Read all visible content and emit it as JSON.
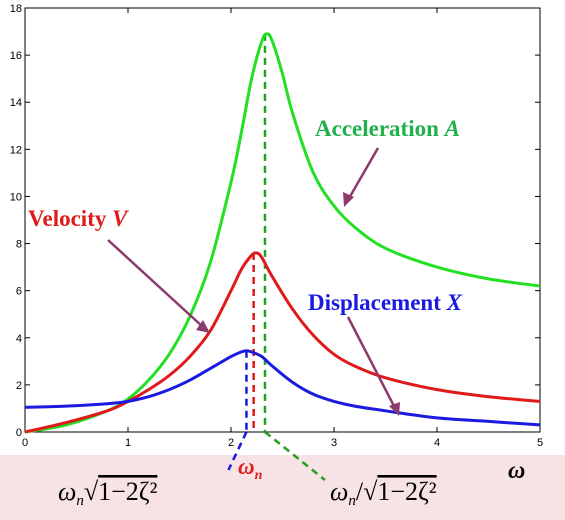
{
  "chart_data": {
    "type": "line",
    "xlabel": "ω",
    "ylabel": "",
    "xlim": [
      0,
      5
    ],
    "ylim": [
      0,
      18
    ],
    "x_ticks": [
      0,
      1,
      2,
      3,
      4,
      5
    ],
    "y_ticks": [
      0,
      2,
      4,
      6,
      8,
      10,
      12,
      14,
      16,
      18
    ],
    "grid": false,
    "series": [
      {
        "name": "Acceleration A",
        "color": "#22e022",
        "x": [
          0,
          0.4,
          0.8,
          1.0,
          1.2,
          1.4,
          1.6,
          1.8,
          2.0,
          2.1,
          2.2,
          2.3,
          2.35,
          2.4,
          2.5,
          2.6,
          2.8,
          3.0,
          3.2,
          3.5,
          4.0,
          4.5,
          5.0
        ],
        "values": [
          0,
          0.3,
          0.9,
          1.4,
          2.2,
          3.3,
          4.9,
          7.2,
          10.6,
          12.7,
          15.0,
          16.6,
          16.9,
          16.6,
          15.2,
          13.5,
          11.0,
          9.6,
          8.7,
          7.8,
          7.0,
          6.5,
          6.2
        ]
      },
      {
        "name": "Velocity V",
        "color": "#e01a1a",
        "x": [
          0,
          0.4,
          0.8,
          1.0,
          1.2,
          1.4,
          1.6,
          1.8,
          2.0,
          2.1,
          2.2,
          2.25,
          2.3,
          2.4,
          2.6,
          2.8,
          3.0,
          3.2,
          3.5,
          4.0,
          4.5,
          5.0
        ],
        "values": [
          0,
          0.4,
          0.9,
          1.3,
          1.8,
          2.4,
          3.2,
          4.3,
          6.0,
          6.9,
          7.5,
          7.6,
          7.4,
          6.6,
          5.2,
          4.1,
          3.3,
          2.8,
          2.3,
          1.8,
          1.5,
          1.3
        ]
      },
      {
        "name": "Displacement X",
        "color": "#1a1ae0",
        "x": [
          0,
          0.4,
          0.8,
          1.0,
          1.2,
          1.4,
          1.6,
          1.8,
          2.0,
          2.1,
          2.15,
          2.2,
          2.3,
          2.4,
          2.6,
          2.8,
          3.0,
          3.2,
          3.5,
          4.0,
          4.5,
          5.0
        ],
        "values": [
          1.05,
          1.1,
          1.2,
          1.3,
          1.5,
          1.8,
          2.2,
          2.7,
          3.2,
          3.4,
          3.45,
          3.4,
          3.2,
          2.8,
          2.1,
          1.6,
          1.3,
          1.1,
          0.9,
          0.6,
          0.45,
          0.3
        ]
      }
    ],
    "reference_lines": [
      {
        "x": 2.15,
        "color": "#1a1ae0",
        "label": "ωn√(1−2ζ²)"
      },
      {
        "x": 2.22,
        "color": "#e01a1a",
        "label": "ωn"
      },
      {
        "x": 2.33,
        "color": "#22a022",
        "label": "ωn/√(1−2ζ²)"
      }
    ],
    "annotations": [
      {
        "series": "Acceleration A",
        "text_main": "Acceleration ",
        "text_var": "A",
        "color": "#22b04a"
      },
      {
        "series": "Velocity V",
        "text_main": "Velocity ",
        "text_var": "V",
        "color": "#e01a1a"
      },
      {
        "series": "Displacement X",
        "text_main": "Displacement ",
        "text_var": "X",
        "color": "#1a1ae0"
      }
    ],
    "under_axis_labels": {
      "omega_n_sqrt": "ωn√(1−2ζ²)",
      "omega_n": "ωn",
      "omega_n_over_sqrt": "ωn/√(1−2ζ²)"
    }
  }
}
